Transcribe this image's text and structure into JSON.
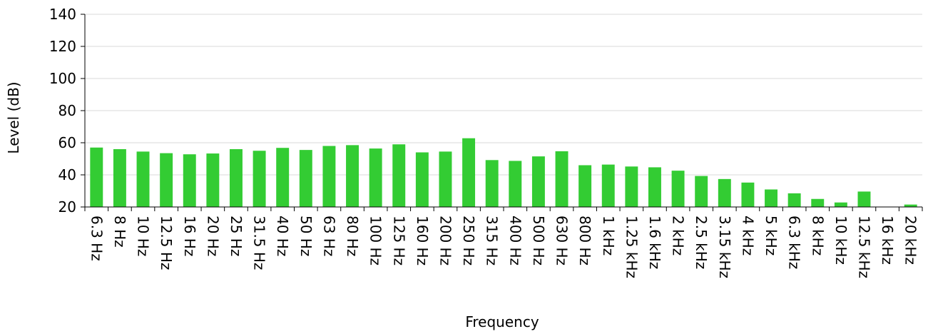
{
  "chart_data": {
    "type": "bar",
    "xlabel": "Frequency",
    "ylabel": "Level (dB)",
    "ylim": [
      20,
      140
    ],
    "yticks": [
      20,
      40,
      60,
      80,
      100,
      120,
      140
    ],
    "grid": "horizontal",
    "bar_color": "#33cc33",
    "categories": [
      "6.3 Hz",
      "8 Hz",
      "10 Hz",
      "12.5 Hz",
      "16 Hz",
      "20 Hz",
      "25 Hz",
      "31.5 Hz",
      "40 Hz",
      "50 Hz",
      "63 Hz",
      "80 Hz",
      "100 Hz",
      "125 Hz",
      "160 Hz",
      "200 Hz",
      "250 Hz",
      "315 Hz",
      "400 Hz",
      "500 Hz",
      "630 Hz",
      "800 Hz",
      "1 kHz",
      "1.25 kHz",
      "1.6 kHz",
      "2 kHz",
      "2.5 kHz",
      "3.15 kHz",
      "4 kHz",
      "5 kHz",
      "6.3 kHz",
      "8 kHz",
      "10 kHz",
      "12.5 kHz",
      "16 kHz",
      "20 kHz"
    ],
    "values": [
      57.0,
      56.0,
      54.5,
      53.5,
      52.8,
      53.3,
      56.0,
      55.0,
      56.8,
      55.5,
      58.0,
      58.5,
      56.4,
      59.0,
      54.0,
      54.5,
      62.8,
      49.2,
      48.7,
      51.5,
      54.7,
      46.0,
      46.4,
      45.2,
      44.7,
      42.6,
      39.3,
      37.4,
      35.2,
      30.9,
      28.5,
      25.0,
      22.8,
      29.6,
      20.0,
      21.5
    ]
  }
}
